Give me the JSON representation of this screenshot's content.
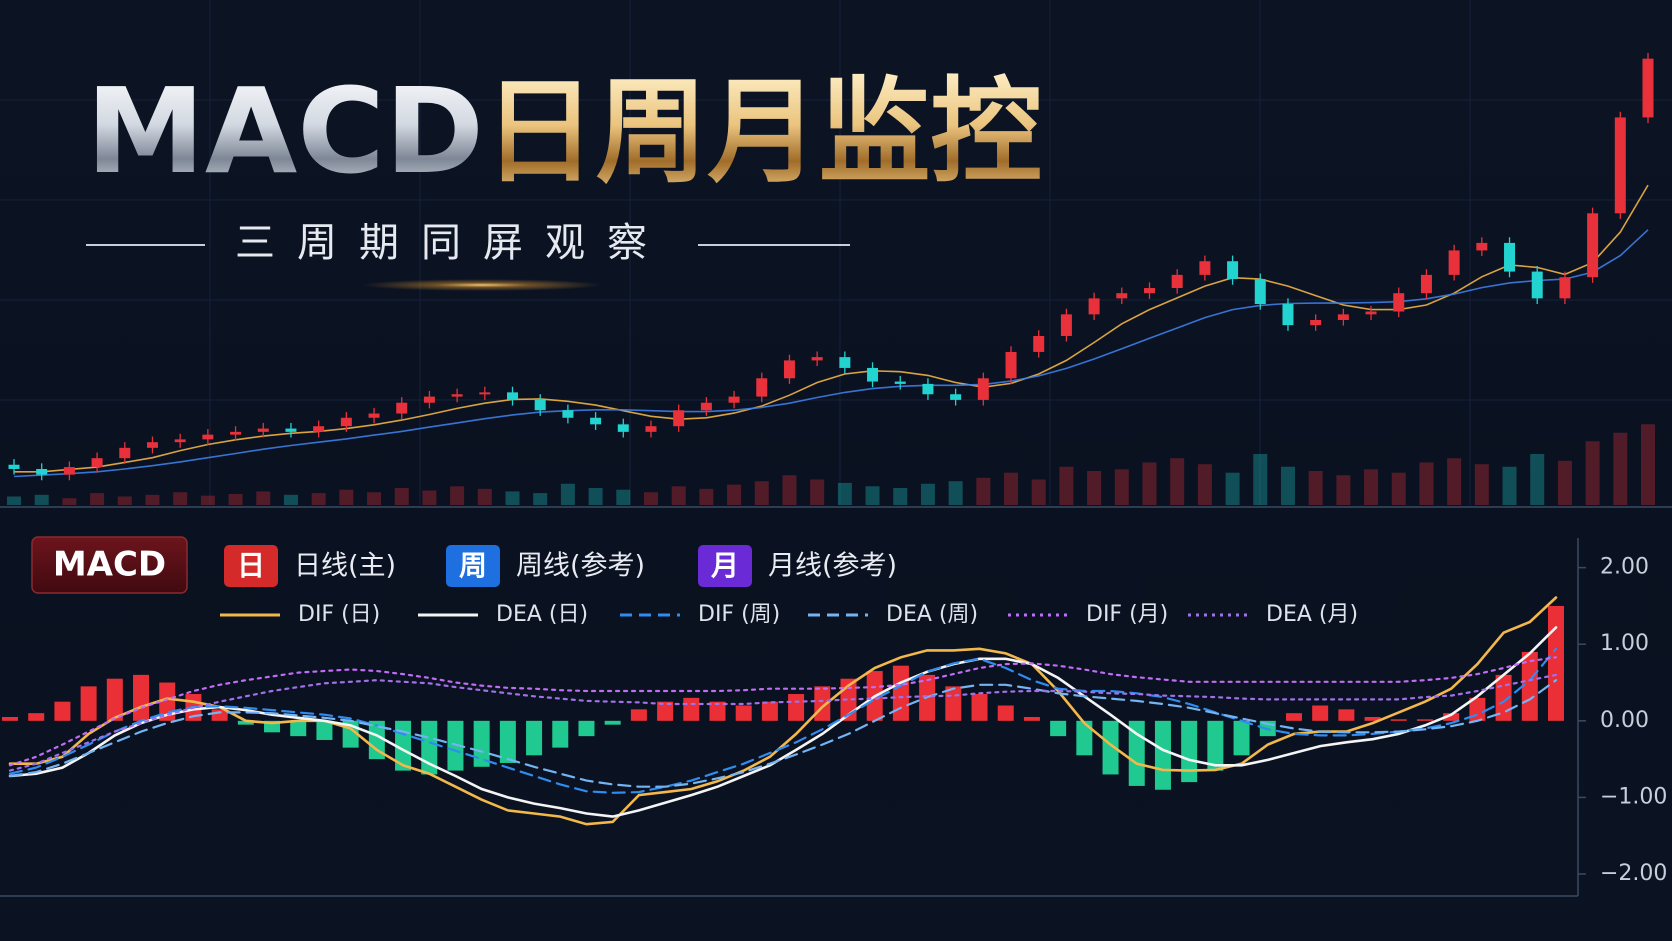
{
  "header": {
    "title_latin": "MACD",
    "title_cjk": "日周月监控",
    "subtitle": "三周期同屏观察"
  },
  "chart_data": [
    {
      "type": "candlestick",
      "ylim": [
        0,
        100
      ],
      "up_color": "#e8313a",
      "down_color": "#22d3d0",
      "open": [
        7.5,
        6.6,
        5.4,
        7.0,
        8.9,
        11.1,
        12.3,
        12.9,
        13.9,
        14.5,
        15.2,
        14.5,
        15.7,
        17.5,
        18.4,
        20.7,
        22.0,
        22.5,
        22.9,
        21.3,
        19.1,
        17.5,
        16.1,
        14.5,
        15.7,
        19.1,
        20.7,
        22.0,
        25.9,
        29.7,
        30.4,
        28.1,
        25.2,
        24.7,
        22.5,
        21.3,
        25.9,
        31.5,
        34.9,
        39.5,
        42.9,
        44.0,
        45.1,
        47.9,
        50.8,
        47.0,
        41.7,
        37.2,
        38.3,
        39.5,
        40.1,
        44.0,
        47.9,
        53.1,
        54.7,
        48.6,
        42.9,
        47.4,
        61.0,
        81.4
      ],
      "high": [
        8.7,
        7.8,
        8.2,
        10.1,
        12.3,
        13.5,
        14.1,
        15.1,
        15.7,
        16.4,
        16.4,
        16.9,
        18.7,
        19.6,
        21.9,
        23.2,
        23.7,
        24.1,
        24.1,
        22.5,
        20.3,
        18.7,
        17.3,
        16.9,
        20.3,
        21.9,
        23.2,
        27.1,
        30.9,
        31.6,
        31.6,
        29.3,
        26.4,
        25.9,
        23.7,
        27.1,
        32.7,
        36.1,
        40.7,
        44.1,
        45.2,
        46.3,
        49.1,
        52.0,
        52.0,
        48.2,
        42.9,
        39.5,
        40.7,
        41.3,
        45.2,
        49.1,
        54.3,
        55.9,
        55.9,
        49.8,
        48.6,
        62.2,
        82.6,
        95.1
      ],
      "low": [
        5.4,
        4.2,
        4.2,
        5.8,
        7.7,
        9.9,
        11.1,
        11.7,
        12.7,
        13.3,
        13.3,
        13.3,
        14.5,
        16.3,
        17.2,
        19.5,
        20.8,
        21.3,
        20.1,
        17.9,
        16.3,
        14.9,
        13.3,
        13.3,
        14.5,
        17.9,
        19.5,
        20.8,
        24.7,
        28.5,
        26.9,
        24.0,
        23.5,
        21.3,
        20.1,
        20.1,
        24.7,
        30.3,
        33.7,
        38.3,
        41.7,
        42.8,
        43.9,
        46.7,
        45.8,
        40.5,
        36.0,
        36.0,
        37.1,
        38.3,
        38.9,
        42.8,
        46.7,
        51.9,
        47.4,
        41.7,
        41.7,
        46.2,
        59.8,
        80.2
      ],
      "close": [
        6.6,
        5.4,
        7.0,
        8.9,
        11.1,
        12.3,
        12.9,
        13.9,
        14.5,
        15.2,
        14.5,
        15.7,
        17.5,
        18.4,
        20.7,
        22.0,
        22.5,
        22.9,
        21.3,
        19.1,
        17.5,
        16.1,
        14.5,
        15.7,
        19.1,
        20.7,
        22.0,
        25.9,
        29.7,
        30.4,
        28.1,
        25.2,
        24.7,
        22.5,
        21.3,
        25.9,
        31.5,
        34.9,
        39.5,
        42.9,
        44.0,
        45.1,
        47.9,
        50.8,
        47.0,
        41.7,
        37.2,
        38.3,
        39.5,
        40.1,
        44.0,
        47.9,
        53.1,
        54.7,
        48.6,
        42.9,
        47.4,
        61.0,
        81.4,
        93.9
      ],
      "series": [
        {
          "color": "#f0b445",
          "values": [
            6,
            6,
            6.5,
            7,
            8,
            9,
            10.5,
            11.8,
            12.8,
            13.6,
            14.2,
            14.6,
            15.2,
            16,
            17,
            18.2,
            19.5,
            20.6,
            21.4,
            21.5,
            21,
            20.2,
            19,
            17.8,
            17.2,
            17.5,
            18.5,
            20,
            22.3,
            25,
            26.8,
            27.5,
            27.3,
            26.5,
            25,
            24,
            24.8,
            26.8,
            29.7,
            33.5,
            37.5,
            40.5,
            43,
            45.5,
            47.3,
            47,
            45.5,
            43.5,
            41.5,
            40.5,
            40.5,
            41.5,
            44,
            47.5,
            50,
            49.5,
            48,
            50.5,
            57,
            67
          ]
        },
        {
          "color": "#3d7ee6",
          "values": [
            5,
            5.3,
            5.6,
            6,
            6.6,
            7.3,
            8.1,
            9,
            9.9,
            10.8,
            11.6,
            12.3,
            13,
            13.8,
            14.6,
            15.5,
            16.4,
            17.3,
            18.1,
            18.7,
            19,
            19.2,
            19.2,
            19,
            18.8,
            18.8,
            19.1,
            19.7,
            20.6,
            21.8,
            22.9,
            23.7,
            24.2,
            24.4,
            24.4,
            24.6,
            25.3,
            26.4,
            28,
            30,
            32.2,
            34.4,
            36.6,
            38.8,
            40.5,
            41.4,
            41.8,
            41.9,
            41.9,
            42,
            42.2,
            42.8,
            43.8,
            45.2,
            46.2,
            46.7,
            47,
            48.5,
            52,
            57.5
          ]
        }
      ],
      "volume": {
        "ylim": [
          0,
          100
        ],
        "values": [
          10,
          12,
          8,
          14,
          10,
          12,
          15,
          11,
          13,
          16,
          12,
          14,
          18,
          15,
          20,
          17,
          22,
          19,
          16,
          14,
          25,
          20,
          18,
          15,
          22,
          19,
          24,
          28,
          35,
          30,
          26,
          22,
          20,
          25,
          28,
          32,
          38,
          30,
          45,
          40,
          42,
          50,
          55,
          48,
          38,
          60,
          45,
          40,
          35,
          42,
          38,
          50,
          55,
          48,
          45,
          60,
          52,
          75,
          85,
          95
        ]
      }
    },
    {
      "type": "macd",
      "label": "MACD",
      "periods": [
        {
          "badge": "日",
          "label": "日线(主)",
          "color": "#d42a2a"
        },
        {
          "badge": "周",
          "label": "周线(参考)",
          "color": "#1e6fe0"
        },
        {
          "badge": "月",
          "label": "月线(参考)",
          "color": "#6a2bd6"
        }
      ],
      "ylim": [
        -2.3,
        2.4
      ],
      "yticks": [
        {
          "value": 2,
          "label": "2.00"
        },
        {
          "value": 1,
          "label": "1.00"
        },
        {
          "value": 0,
          "label": "0.00"
        },
        {
          "value": -1,
          "label": "−1.00"
        },
        {
          "value": -2,
          "label": "−2.00"
        }
      ],
      "histogram": {
        "up_color": "#ea2f36",
        "down_color": "#1fc98f",
        "values": [
          0.05,
          0.1,
          0.25,
          0.45,
          0.55,
          0.6,
          0.5,
          0.35,
          0.15,
          -0.05,
          -0.15,
          -0.2,
          -0.25,
          -0.35,
          -0.5,
          -0.65,
          -0.7,
          -0.65,
          -0.6,
          -0.55,
          -0.45,
          -0.35,
          -0.2,
          -0.05,
          0.15,
          0.25,
          0.3,
          0.25,
          0.2,
          0.25,
          0.35,
          0.45,
          0.55,
          0.65,
          0.72,
          0.6,
          0.45,
          0.35,
          0.2,
          0.05,
          -0.2,
          -0.45,
          -0.7,
          -0.85,
          -0.9,
          -0.8,
          -0.65,
          -0.45,
          -0.2,
          0.1,
          0.2,
          0.15,
          0.05,
          0.02,
          0.02,
          0.1,
          0.3,
          0.6,
          0.9,
          1.5
        ]
      },
      "series": [
        {
          "name": "DIF (日)",
          "color": "#f2b84b",
          "dash": "solid",
          "values": [
            -0.56,
            -0.56,
            -0.47,
            -0.17,
            0.04,
            0.18,
            0.29,
            0.25,
            0.18,
            0,
            -0.03,
            0,
            0,
            -0.1,
            -0.38,
            -0.58,
            -0.69,
            -0.86,
            -1.03,
            -1.17,
            -1.21,
            -1.25,
            -1.35,
            -1.32,
            -0.97,
            -0.93,
            -0.89,
            -0.79,
            -0.65,
            -0.47,
            -0.17,
            0.18,
            0.46,
            0.69,
            0.83,
            0.92,
            0.92,
            0.94,
            0.88,
            0.74,
            0.39,
            -0.03,
            -0.31,
            -0.56,
            -0.64,
            -0.65,
            -0.64,
            -0.56,
            -0.31,
            -0.17,
            -0.14,
            -0.14,
            -0.03,
            0.11,
            0.25,
            0.42,
            0.74,
            1.15,
            1.29,
            1.61
          ]
        },
        {
          "name": "DEA (日)",
          "color": "#f4f4f4",
          "dash": "solid",
          "values": [
            -0.72,
            -0.69,
            -0.61,
            -0.42,
            -0.19,
            -0.03,
            0.08,
            0.15,
            0.18,
            0.14,
            0.08,
            0.04,
            0,
            -0.06,
            -0.19,
            -0.38,
            -0.56,
            -0.72,
            -0.89,
            -1.0,
            -1.08,
            -1.14,
            -1.21,
            -1.25,
            -1.17,
            -1.07,
            -0.97,
            -0.86,
            -0.72,
            -0.58,
            -0.38,
            -0.17,
            0.08,
            0.32,
            0.5,
            0.64,
            0.74,
            0.81,
            0.81,
            0.74,
            0.56,
            0.32,
            0.08,
            -0.17,
            -0.38,
            -0.51,
            -0.58,
            -0.58,
            -0.51,
            -0.42,
            -0.33,
            -0.28,
            -0.24,
            -0.17,
            -0.06,
            0.08,
            0.32,
            0.6,
            0.88,
            1.22
          ]
        },
        {
          "name": "DIF (周)",
          "color": "#2f8cf0",
          "dash": "dashed",
          "values": [
            -0.69,
            -0.61,
            -0.47,
            -0.31,
            -0.14,
            0,
            0.11,
            0.18,
            0.19,
            0.17,
            0.14,
            0.11,
            0.08,
            0.03,
            -0.06,
            -0.17,
            -0.28,
            -0.39,
            -0.5,
            -0.61,
            -0.72,
            -0.83,
            -0.92,
            -0.94,
            -0.93,
            -0.86,
            -0.78,
            -0.67,
            -0.56,
            -0.42,
            -0.28,
            -0.11,
            0.08,
            0.28,
            0.46,
            0.64,
            0.75,
            0.81,
            0.69,
            0.53,
            0.42,
            0.39,
            0.39,
            0.36,
            0.31,
            0.22,
            0.11,
            0,
            -0.11,
            -0.17,
            -0.19,
            -0.19,
            -0.17,
            -0.14,
            -0.1,
            -0.03,
            0.08,
            0.25,
            0.53,
            0.94
          ]
        },
        {
          "name": "DEA (周)",
          "color": "#74b4f2",
          "dash": "dashed",
          "values": [
            -0.72,
            -0.67,
            -0.56,
            -0.42,
            -0.28,
            -0.14,
            -0.03,
            0.06,
            0.11,
            0.11,
            0.1,
            0.07,
            0.04,
            0,
            -0.07,
            -0.14,
            -0.22,
            -0.31,
            -0.4,
            -0.5,
            -0.6,
            -0.69,
            -0.78,
            -0.83,
            -0.86,
            -0.86,
            -0.82,
            -0.75,
            -0.67,
            -0.56,
            -0.44,
            -0.31,
            -0.17,
            0,
            0.17,
            0.31,
            0.42,
            0.47,
            0.47,
            0.42,
            0.36,
            0.32,
            0.29,
            0.26,
            0.22,
            0.17,
            0.1,
            0.03,
            -0.04,
            -0.1,
            -0.14,
            -0.15,
            -0.15,
            -0.14,
            -0.11,
            -0.07,
            0,
            0.11,
            0.28,
            0.53
          ]
        },
        {
          "name": "DIF (月)",
          "color": "#c06cf5",
          "dash": "dotted",
          "values": [
            -0.58,
            -0.47,
            -0.31,
            -0.14,
            0.03,
            0.17,
            0.28,
            0.39,
            0.47,
            0.53,
            0.58,
            0.63,
            0.65,
            0.67,
            0.65,
            0.61,
            0.56,
            0.5,
            0.46,
            0.43,
            0.42,
            0.4,
            0.39,
            0.39,
            0.39,
            0.39,
            0.39,
            0.39,
            0.4,
            0.42,
            0.42,
            0.42,
            0.43,
            0.44,
            0.47,
            0.53,
            0.61,
            0.69,
            0.74,
            0.75,
            0.72,
            0.67,
            0.61,
            0.57,
            0.54,
            0.51,
            0.51,
            0.51,
            0.51,
            0.51,
            0.51,
            0.51,
            0.51,
            0.51,
            0.53,
            0.56,
            0.61,
            0.69,
            0.78,
            0.83
          ]
        },
        {
          "name": "DEA (月)",
          "color": "#a070e8",
          "dash": "dotted",
          "values": [
            -0.65,
            -0.56,
            -0.42,
            -0.28,
            -0.14,
            -0.03,
            0.08,
            0.17,
            0.25,
            0.32,
            0.39,
            0.44,
            0.49,
            0.51,
            0.53,
            0.51,
            0.49,
            0.44,
            0.4,
            0.36,
            0.32,
            0.29,
            0.26,
            0.25,
            0.24,
            0.22,
            0.22,
            0.22,
            0.22,
            0.24,
            0.25,
            0.26,
            0.28,
            0.29,
            0.31,
            0.32,
            0.33,
            0.36,
            0.38,
            0.39,
            0.39,
            0.38,
            0.36,
            0.35,
            0.33,
            0.32,
            0.31,
            0.29,
            0.28,
            0.28,
            0.28,
            0.28,
            0.28,
            0.28,
            0.31,
            0.33,
            0.39,
            0.46,
            0.53,
            0.6
          ]
        }
      ]
    }
  ]
}
